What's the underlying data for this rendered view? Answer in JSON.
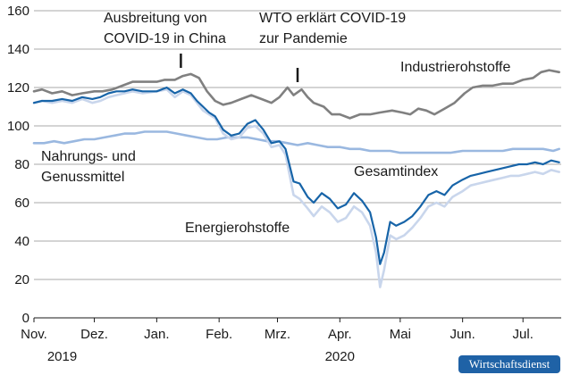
{
  "chart_data": {
    "type": "line",
    "ylim": [
      0,
      160
    ],
    "yticks": [
      "0",
      "20",
      "40",
      "60",
      "80",
      "100",
      "120",
      "140",
      "160"
    ],
    "xlim": [
      "2019-11-01",
      "2020-07-20"
    ],
    "month_ticks": [
      {
        "date": "2019-11-01",
        "label": "Nov."
      },
      {
        "date": "2019-12-01",
        "label": "Dez."
      },
      {
        "date": "2020-01-01",
        "label": "Jan."
      },
      {
        "date": "2020-02-01",
        "label": "Feb."
      },
      {
        "date": "2020-03-01",
        "label": "Mrz."
      },
      {
        "date": "2020-04-01",
        "label": "Apr."
      },
      {
        "date": "2020-05-01",
        "label": "Mai"
      },
      {
        "date": "2020-06-01",
        "label": "Jun."
      },
      {
        "date": "2020-07-01",
        "label": "Jul."
      }
    ],
    "year_labels": [
      {
        "date": "2019-11-15",
        "label": "2019"
      },
      {
        "date": "2020-04-01",
        "label": "2020"
      }
    ],
    "grid": "horizontal",
    "series": [
      {
        "name": "Industrierohstoffe",
        "color": "#808080",
        "points": [
          [
            "2019-11-01",
            118
          ],
          [
            "2019-11-05",
            119
          ],
          [
            "2019-11-10",
            117
          ],
          [
            "2019-11-15",
            118
          ],
          [
            "2019-11-20",
            116
          ],
          [
            "2019-11-25",
            117
          ],
          [
            "2019-12-01",
            118
          ],
          [
            "2019-12-05",
            118
          ],
          [
            "2019-12-10",
            119
          ],
          [
            "2019-12-15",
            121
          ],
          [
            "2019-12-20",
            123
          ],
          [
            "2019-12-25",
            123
          ],
          [
            "2020-01-01",
            123
          ],
          [
            "2020-01-05",
            124
          ],
          [
            "2020-01-10",
            124
          ],
          [
            "2020-01-14",
            126
          ],
          [
            "2020-01-18",
            127
          ],
          [
            "2020-01-22",
            125
          ],
          [
            "2020-01-26",
            118
          ],
          [
            "2020-01-30",
            113
          ],
          [
            "2020-02-03",
            111
          ],
          [
            "2020-02-07",
            112
          ],
          [
            "2020-02-12",
            114
          ],
          [
            "2020-02-17",
            116
          ],
          [
            "2020-02-22",
            114
          ],
          [
            "2020-02-27",
            112
          ],
          [
            "2020-03-02",
            115
          ],
          [
            "2020-03-06",
            120
          ],
          [
            "2020-03-09",
            116
          ],
          [
            "2020-03-13",
            119
          ],
          [
            "2020-03-16",
            115
          ],
          [
            "2020-03-19",
            112
          ],
          [
            "2020-03-24",
            110
          ],
          [
            "2020-03-28",
            106
          ],
          [
            "2020-04-01",
            106
          ],
          [
            "2020-04-06",
            104
          ],
          [
            "2020-04-11",
            106
          ],
          [
            "2020-04-16",
            106
          ],
          [
            "2020-04-21",
            107
          ],
          [
            "2020-04-27",
            108
          ],
          [
            "2020-05-02",
            107
          ],
          [
            "2020-05-06",
            106
          ],
          [
            "2020-05-10",
            109
          ],
          [
            "2020-05-14",
            108
          ],
          [
            "2020-05-18",
            106
          ],
          [
            "2020-05-23",
            109
          ],
          [
            "2020-05-28",
            112
          ],
          [
            "2020-06-02",
            117
          ],
          [
            "2020-06-06",
            120
          ],
          [
            "2020-06-11",
            121
          ],
          [
            "2020-06-16",
            121
          ],
          [
            "2020-06-21",
            122
          ],
          [
            "2020-06-26",
            122
          ],
          [
            "2020-07-01",
            124
          ],
          [
            "2020-07-06",
            125
          ],
          [
            "2020-07-10",
            128
          ],
          [
            "2020-07-14",
            129
          ],
          [
            "2020-07-19",
            128
          ]
        ]
      },
      {
        "name": "Nahrungs- und Genussmittel",
        "color": "#9ab8e0",
        "points": [
          [
            "2019-11-01",
            91
          ],
          [
            "2019-11-06",
            91
          ],
          [
            "2019-11-11",
            92
          ],
          [
            "2019-11-16",
            91
          ],
          [
            "2019-11-21",
            92
          ],
          [
            "2019-11-26",
            93
          ],
          [
            "2019-12-01",
            93
          ],
          [
            "2019-12-06",
            94
          ],
          [
            "2019-12-11",
            95
          ],
          [
            "2019-12-16",
            96
          ],
          [
            "2019-12-21",
            96
          ],
          [
            "2019-12-26",
            97
          ],
          [
            "2020-01-01",
            97
          ],
          [
            "2020-01-06",
            97
          ],
          [
            "2020-01-11",
            96
          ],
          [
            "2020-01-16",
            95
          ],
          [
            "2020-01-21",
            94
          ],
          [
            "2020-01-26",
            93
          ],
          [
            "2020-01-31",
            93
          ],
          [
            "2020-02-05",
            94
          ],
          [
            "2020-02-10",
            94
          ],
          [
            "2020-02-15",
            94
          ],
          [
            "2020-02-20",
            93
          ],
          [
            "2020-02-25",
            92
          ],
          [
            "2020-03-01",
            92
          ],
          [
            "2020-03-06",
            91
          ],
          [
            "2020-03-11",
            90
          ],
          [
            "2020-03-16",
            91
          ],
          [
            "2020-03-21",
            90
          ],
          [
            "2020-03-26",
            89
          ],
          [
            "2020-04-01",
            89
          ],
          [
            "2020-04-06",
            88
          ],
          [
            "2020-04-11",
            88
          ],
          [
            "2020-04-16",
            87
          ],
          [
            "2020-04-21",
            87
          ],
          [
            "2020-04-26",
            87
          ],
          [
            "2020-05-01",
            86
          ],
          [
            "2020-05-06",
            86
          ],
          [
            "2020-05-11",
            86
          ],
          [
            "2020-05-16",
            86
          ],
          [
            "2020-05-21",
            86
          ],
          [
            "2020-05-26",
            86
          ],
          [
            "2020-06-01",
            87
          ],
          [
            "2020-06-06",
            87
          ],
          [
            "2020-06-11",
            87
          ],
          [
            "2020-06-16",
            87
          ],
          [
            "2020-06-21",
            87
          ],
          [
            "2020-06-26",
            88
          ],
          [
            "2020-07-01",
            88
          ],
          [
            "2020-07-06",
            88
          ],
          [
            "2020-07-11",
            88
          ],
          [
            "2020-07-16",
            87
          ],
          [
            "2020-07-19",
            88
          ]
        ]
      },
      {
        "name": "Energierohstoffe",
        "color": "#c9d6ec",
        "points": [
          [
            "2019-11-01",
            112
          ],
          [
            "2019-11-05",
            113
          ],
          [
            "2019-11-10",
            112
          ],
          [
            "2019-11-15",
            113
          ],
          [
            "2019-11-20",
            112
          ],
          [
            "2019-11-25",
            114
          ],
          [
            "2019-11-30",
            112
          ],
          [
            "2019-12-04",
            113
          ],
          [
            "2019-12-08",
            115
          ],
          [
            "2019-12-12",
            116
          ],
          [
            "2019-12-16",
            117
          ],
          [
            "2019-12-20",
            118
          ],
          [
            "2019-12-25",
            117
          ],
          [
            "2020-01-01",
            118
          ],
          [
            "2020-01-06",
            119
          ],
          [
            "2020-01-10",
            115
          ],
          [
            "2020-01-14",
            118
          ],
          [
            "2020-01-18",
            116
          ],
          [
            "2020-01-21",
            112
          ],
          [
            "2020-01-24",
            108
          ],
          [
            "2020-01-27",
            106
          ],
          [
            "2020-01-30",
            104
          ],
          [
            "2020-02-03",
            96
          ],
          [
            "2020-02-07",
            93
          ],
          [
            "2020-02-11",
            94
          ],
          [
            "2020-02-15",
            99
          ],
          [
            "2020-02-19",
            100
          ],
          [
            "2020-02-23",
            96
          ],
          [
            "2020-02-27",
            89
          ],
          [
            "2020-03-02",
            90
          ],
          [
            "2020-03-05",
            85
          ],
          [
            "2020-03-09",
            64
          ],
          [
            "2020-03-12",
            62
          ],
          [
            "2020-03-16",
            57
          ],
          [
            "2020-03-19",
            53
          ],
          [
            "2020-03-23",
            58
          ],
          [
            "2020-03-27",
            55
          ],
          [
            "2020-03-31",
            50
          ],
          [
            "2020-04-04",
            52
          ],
          [
            "2020-04-08",
            58
          ],
          [
            "2020-04-12",
            55
          ],
          [
            "2020-04-16",
            48
          ],
          [
            "2020-04-19",
            34
          ],
          [
            "2020-04-21",
            16
          ],
          [
            "2020-04-23",
            25
          ],
          [
            "2020-04-26",
            43
          ],
          [
            "2020-04-29",
            41
          ],
          [
            "2020-05-03",
            43
          ],
          [
            "2020-05-07",
            47
          ],
          [
            "2020-05-11",
            52
          ],
          [
            "2020-05-15",
            58
          ],
          [
            "2020-05-19",
            60
          ],
          [
            "2020-05-23",
            58
          ],
          [
            "2020-05-27",
            63
          ],
          [
            "2020-06-01",
            66
          ],
          [
            "2020-06-05",
            69
          ],
          [
            "2020-06-09",
            70
          ],
          [
            "2020-06-13",
            71
          ],
          [
            "2020-06-17",
            72
          ],
          [
            "2020-06-21",
            73
          ],
          [
            "2020-06-25",
            74
          ],
          [
            "2020-06-29",
            74
          ],
          [
            "2020-07-03",
            75
          ],
          [
            "2020-07-07",
            76
          ],
          [
            "2020-07-11",
            75
          ],
          [
            "2020-07-15",
            77
          ],
          [
            "2020-07-19",
            76
          ]
        ]
      },
      {
        "name": "Gesamtindex",
        "color": "#1764a8",
        "points": [
          [
            "2019-11-01",
            112
          ],
          [
            "2019-11-05",
            113
          ],
          [
            "2019-11-10",
            113
          ],
          [
            "2019-11-15",
            114
          ],
          [
            "2019-11-20",
            113
          ],
          [
            "2019-11-25",
            115
          ],
          [
            "2019-11-30",
            114
          ],
          [
            "2019-12-04",
            115
          ],
          [
            "2019-12-08",
            117
          ],
          [
            "2019-12-12",
            118
          ],
          [
            "2019-12-16",
            118
          ],
          [
            "2019-12-20",
            119
          ],
          [
            "2019-12-25",
            118
          ],
          [
            "2020-01-01",
            118
          ],
          [
            "2020-01-06",
            120
          ],
          [
            "2020-01-10",
            117
          ],
          [
            "2020-01-14",
            119
          ],
          [
            "2020-01-18",
            117
          ],
          [
            "2020-01-21",
            113
          ],
          [
            "2020-01-24",
            110
          ],
          [
            "2020-01-27",
            107
          ],
          [
            "2020-01-30",
            105
          ],
          [
            "2020-02-03",
            98
          ],
          [
            "2020-02-07",
            95
          ],
          [
            "2020-02-11",
            96
          ],
          [
            "2020-02-15",
            101
          ],
          [
            "2020-02-19",
            103
          ],
          [
            "2020-02-23",
            98
          ],
          [
            "2020-02-27",
            91
          ],
          [
            "2020-03-02",
            92
          ],
          [
            "2020-03-05",
            88
          ],
          [
            "2020-03-09",
            71
          ],
          [
            "2020-03-12",
            70
          ],
          [
            "2020-03-16",
            63
          ],
          [
            "2020-03-19",
            60
          ],
          [
            "2020-03-23",
            65
          ],
          [
            "2020-03-27",
            62
          ],
          [
            "2020-03-31",
            57
          ],
          [
            "2020-04-04",
            59
          ],
          [
            "2020-04-08",
            65
          ],
          [
            "2020-04-12",
            61
          ],
          [
            "2020-04-16",
            55
          ],
          [
            "2020-04-19",
            42
          ],
          [
            "2020-04-21",
            28
          ],
          [
            "2020-04-23",
            34
          ],
          [
            "2020-04-26",
            50
          ],
          [
            "2020-04-29",
            48
          ],
          [
            "2020-05-03",
            50
          ],
          [
            "2020-05-07",
            53
          ],
          [
            "2020-05-11",
            58
          ],
          [
            "2020-05-15",
            64
          ],
          [
            "2020-05-19",
            66
          ],
          [
            "2020-05-23",
            64
          ],
          [
            "2020-05-27",
            69
          ],
          [
            "2020-06-01",
            72
          ],
          [
            "2020-06-05",
            74
          ],
          [
            "2020-06-09",
            75
          ],
          [
            "2020-06-13",
            76
          ],
          [
            "2020-06-17",
            77
          ],
          [
            "2020-06-21",
            78
          ],
          [
            "2020-06-25",
            79
          ],
          [
            "2020-06-29",
            80
          ],
          [
            "2020-07-03",
            80
          ],
          [
            "2020-07-07",
            81
          ],
          [
            "2020-07-11",
            80
          ],
          [
            "2020-07-15",
            82
          ],
          [
            "2020-07-19",
            81
          ]
        ]
      }
    ],
    "annotations": [
      {
        "id": "ausbreitung",
        "lines": [
          "Ausbreitung von",
          "COVID-19 in China"
        ],
        "marker_date": "2020-01-13"
      },
      {
        "id": "who",
        "lines": [
          "WTO erklärt COVID-19",
          "zur Pandemie"
        ],
        "marker_date": "2020-03-11"
      }
    ]
  },
  "series_labels": {
    "industrie": "Industrierohstoffe",
    "nahrung_1": "Nahrungs- und",
    "nahrung_2": "Genussmittel",
    "gesamt": "Gesamtindex",
    "energie": "Energierohstoffe"
  },
  "badge": "Wirtschaftsdienst"
}
